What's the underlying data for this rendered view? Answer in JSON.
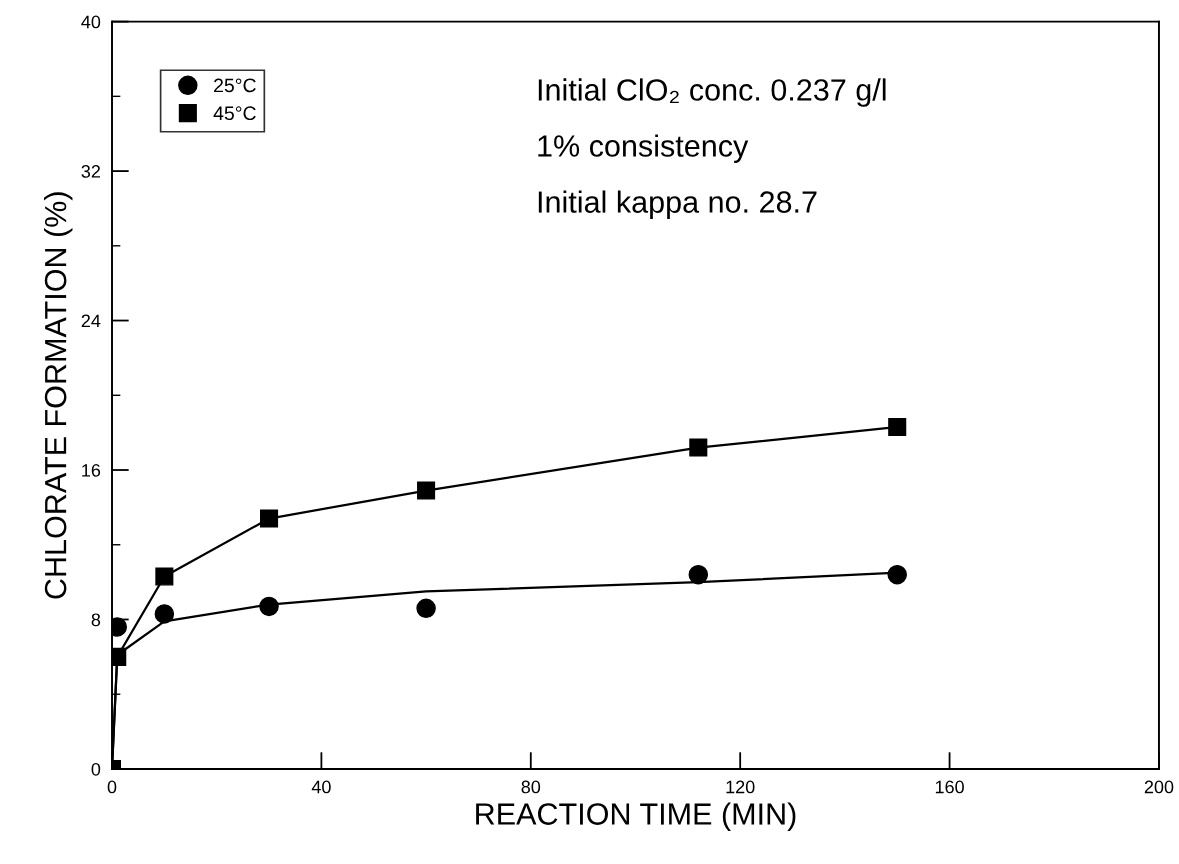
{
  "chart_data": {
    "type": "line",
    "xlabel": "REACTION TIME (MIN)",
    "ylabel": "CHLORATE FORMATION (%)",
    "xlim": [
      0,
      200
    ],
    "xticks": [
      0,
      40,
      80,
      120,
      160,
      200
    ],
    "ylim": [
      0,
      40
    ],
    "yticks": [
      0,
      8,
      16,
      24,
      32,
      40
    ],
    "legend": "top left",
    "grid": false,
    "annotations": [
      "Initial ClO₂ conc. 0.237 g/l",
      "1% consistency",
      "Initial kappa no. 28.7"
    ],
    "series": [
      {
        "name": "25°C",
        "type": "scatter",
        "marker": "circle",
        "color": "#000000",
        "x": [
          1,
          10,
          30,
          60,
          112,
          150
        ],
        "values": [
          7.6,
          8.3,
          8.7,
          8.6,
          10.4,
          10.4
        ]
      },
      {
        "name": "45°C",
        "type": "line",
        "marker": "square",
        "line_style": "solid",
        "color": "#000000",
        "x": [
          0,
          1,
          10,
          30,
          60,
          112,
          150
        ],
        "values": [
          0,
          6.0,
          10.3,
          13.4,
          14.9,
          17.2,
          18.3
        ]
      },
      {
        "marker": "none",
        "line_style": "solid",
        "color": "#000000",
        "x": [
          0,
          1,
          10,
          30,
          60,
          112,
          150
        ],
        "values": [
          0,
          6.1,
          7.9,
          8.8,
          9.5,
          10.0,
          10.5
        ]
      }
    ]
  }
}
